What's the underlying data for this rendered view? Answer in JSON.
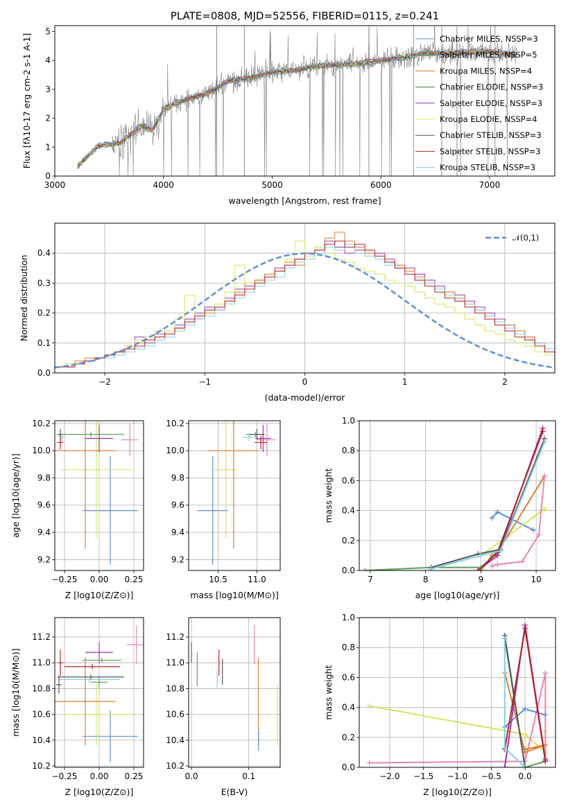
{
  "chart_data": [
    {
      "type": "line",
      "title": "PLATE=0808, MJD=52556, FIBERID=0115, z=0.241",
      "xlabel": "wavelength [Angstrom, rest frame]",
      "ylabel": "Flux [f$_{\\lambda}$10$^{-17}$ erg cm$^{-2}$ s$^{-1}$ A$^{-1}$]",
      "xlim": [
        3000,
        7600
      ],
      "ylim": [
        0,
        5.2
      ],
      "xticks": [
        "3000",
        "4000",
        "5000",
        "6000",
        "7000"
      ],
      "yticks": [
        "0",
        "1",
        "2",
        "3",
        "4",
        "5"
      ],
      "grid": false,
      "legend_position": "top-right",
      "spectrum_x": [
        3200,
        3400,
        3600,
        3800,
        3900,
        4000,
        4200,
        4400,
        4600,
        4800,
        5000,
        5200,
        5400,
        5600,
        5800,
        6000,
        6200,
        6400,
        6600,
        6800,
        7000,
        7250
      ],
      "spectrum_y": [
        0.3,
        1.05,
        1.15,
        1.75,
        1.6,
        2.3,
        2.65,
        2.85,
        3.3,
        3.4,
        3.6,
        3.65,
        3.8,
        3.85,
        3.9,
        4.0,
        4.1,
        4.25,
        4.25,
        4.3,
        4.3,
        4.2
      ],
      "series": [
        {
          "name": "Chabrier MILES, N$_{SSP}$=3",
          "color": "#5b8fd6"
        },
        {
          "name": "Salpeter MILES, N$_{SSP}$=5",
          "color": "#5aa05a"
        },
        {
          "name": "Kroupa MILES, N$_{SSP}$=4",
          "color": "#e07b28"
        },
        {
          "name": "Chabrier ELODIE, N$_{SSP}$=3",
          "color": "#3a7a3a"
        },
        {
          "name": "Salpeter ELODIE, N$_{SSP}$=3",
          "color": "#9b30b0"
        },
        {
          "name": "Kroupa ELODIE, N$_{SSP}$=4",
          "color": "#d6e25a"
        },
        {
          "name": "Chabrier STELIB, N$_{SSP}$=3",
          "color": "#555555"
        },
        {
          "name": "Salpeter STELIB, N$_{SSP}$=3",
          "color": "#b22222"
        },
        {
          "name": "Kroupa STELIB, N$_{SSP}$=3",
          "color": "#7fd0e0"
        }
      ]
    },
    {
      "type": "bar",
      "xlabel": "(data-model)/error",
      "ylabel": "Normed distribution",
      "xlim": [
        -2.5,
        2.5
      ],
      "ylim": [
        0,
        0.5
      ],
      "xticks": [
        "−2",
        "−1",
        "0",
        "1",
        "2"
      ],
      "yticks": [
        "0.0",
        "0.1",
        "0.2",
        "0.3",
        "0.4"
      ],
      "grid": true,
      "legend_position": "top-right",
      "legend": "$\\mathcal{N}(0,1)$",
      "bin_width": 0.1,
      "histograms": [
        {
          "color": "#9b30b0",
          "values": [
            0.02,
            0.02,
            0.03,
            0.04,
            0.05,
            0.06,
            0.07,
            0.08,
            0.12,
            0.1,
            0.13,
            0.14,
            0.16,
            0.18,
            0.2,
            0.22,
            0.21,
            0.25,
            0.28,
            0.29,
            0.31,
            0.33,
            0.35,
            0.36,
            0.38,
            0.39,
            0.41,
            0.44,
            0.42,
            0.4,
            0.41,
            0.39,
            0.4,
            0.38,
            0.36,
            0.35,
            0.33,
            0.31,
            0.29,
            0.27,
            0.26,
            0.24,
            0.22,
            0.2,
            0.18,
            0.16,
            0.14,
            0.12,
            0.1,
            0.08
          ]
        },
        {
          "color": "#e07b28",
          "values": [
            0.02,
            0.02,
            0.04,
            0.05,
            0.05,
            0.06,
            0.07,
            0.09,
            0.1,
            0.11,
            0.12,
            0.14,
            0.15,
            0.17,
            0.18,
            0.2,
            0.22,
            0.24,
            0.27,
            0.3,
            0.31,
            0.33,
            0.34,
            0.37,
            0.36,
            0.4,
            0.42,
            0.45,
            0.47,
            0.44,
            0.42,
            0.4,
            0.39,
            0.37,
            0.36,
            0.34,
            0.32,
            0.3,
            0.28,
            0.27,
            0.25,
            0.23,
            0.21,
            0.19,
            0.17,
            0.16,
            0.14,
            0.12,
            0.1,
            0.08
          ]
        },
        {
          "color": "#d6e25a",
          "values": [
            0.02,
            0.03,
            0.03,
            0.04,
            0.05,
            0.06,
            0.07,
            0.09,
            0.11,
            0.12,
            0.14,
            0.14,
            0.18,
            0.26,
            0.19,
            0.21,
            0.23,
            0.27,
            0.36,
            0.3,
            0.3,
            0.32,
            0.34,
            0.38,
            0.44,
            0.39,
            0.42,
            0.4,
            0.38,
            0.37,
            0.35,
            0.34,
            0.33,
            0.31,
            0.3,
            0.29,
            0.27,
            0.25,
            0.23,
            0.22,
            0.2,
            0.18,
            0.16,
            0.14,
            0.13,
            0.11,
            0.1,
            0.09,
            0.07,
            0.06
          ]
        },
        {
          "color": "#7fd0e0",
          "values": [
            0.02,
            0.02,
            0.03,
            0.04,
            0.05,
            0.05,
            0.06,
            0.07,
            0.08,
            0.09,
            0.11,
            0.12,
            0.14,
            0.16,
            0.18,
            0.19,
            0.21,
            0.23,
            0.25,
            0.27,
            0.29,
            0.31,
            0.32,
            0.35,
            0.37,
            0.38,
            0.4,
            0.42,
            0.41,
            0.43,
            0.4,
            0.39,
            0.38,
            0.36,
            0.35,
            0.33,
            0.31,
            0.3,
            0.28,
            0.26,
            0.24,
            0.23,
            0.21,
            0.19,
            0.17,
            0.15,
            0.13,
            0.11,
            0.1,
            0.08
          ]
        },
        {
          "color": "#b22222",
          "values": [
            0.02,
            0.02,
            0.03,
            0.04,
            0.05,
            0.06,
            0.07,
            0.08,
            0.09,
            0.11,
            0.12,
            0.13,
            0.15,
            0.17,
            0.19,
            0.21,
            0.22,
            0.24,
            0.26,
            0.28,
            0.3,
            0.32,
            0.34,
            0.36,
            0.38,
            0.4,
            0.41,
            0.43,
            0.44,
            0.42,
            0.43,
            0.41,
            0.39,
            0.37,
            0.35,
            0.33,
            0.31,
            0.29,
            0.27,
            0.25,
            0.24,
            0.22,
            0.2,
            0.18,
            0.16,
            0.14,
            0.12,
            0.11,
            0.09,
            0.07
          ]
        }
      ],
      "curve": {
        "name": "$\\mathcal{N}(0,1)$",
        "color": "#5b8fd6",
        "mean": 0,
        "sigma": 1
      }
    },
    {
      "type": "scatter",
      "xlabel": "Z [log$_{10}$(Z/Z$_\\odot$)]",
      "ylabel": "age  [log$_{10}$(age/yr)]",
      "xlim": [
        -0.32,
        0.32
      ],
      "ylim": [
        9.12,
        10.22
      ],
      "xticks": [
        "−0.25",
        "0.00",
        "0.25"
      ],
      "yticks": [
        "9.2",
        "9.4",
        "9.6",
        "9.8",
        "10.0",
        "10.2"
      ],
      "grid": true,
      "points": [
        {
          "color": "#5b8fd6",
          "x": 0.08,
          "xerr": 0.2,
          "y": 9.56,
          "yerr": 0.4
        },
        {
          "color": "#d6e25a",
          "x": -0.02,
          "xerr": 0.25,
          "y": 9.86,
          "yerr": 0.5
        },
        {
          "color": "#e07b28",
          "x": -0.1,
          "xerr": 0.22,
          "y": 10.0,
          "yerr": 0.72
        },
        {
          "color": "#5aa05a",
          "x": -0.06,
          "xerr": 0.24,
          "y": 10.12,
          "yerr": 0.02
        },
        {
          "color": "#9b30b0",
          "x": 0.0,
          "xerr": 0.1,
          "y": 10.09,
          "yerr": 0.1
        },
        {
          "color": "#e684b4",
          "x": 0.22,
          "xerr": 0.06,
          "y": 10.08,
          "yerr": 0.12
        },
        {
          "color": "#555555",
          "x": -0.28,
          "xerr": 0.02,
          "y": 10.12,
          "yerr": 0.04
        },
        {
          "color": "#b22222",
          "x": -0.28,
          "xerr": 0.02,
          "y": 10.06,
          "yerr": 0.05
        },
        {
          "color": "#7fd0e0",
          "x": -0.27,
          "xerr": 0.02,
          "y": 10.1,
          "yerr": 0.03
        }
      ]
    },
    {
      "type": "scatter",
      "xlabel": "mass [log$_{10}$(M/M$_\\odot$)]",
      "xlim": [
        10.12,
        11.3
      ],
      "ylim": [
        9.12,
        10.22
      ],
      "xticks": [
        "10.5",
        "11.0"
      ],
      "yticks": [
        "9.2",
        "9.4",
        "9.6",
        "9.8",
        "10.0",
        "10.2"
      ],
      "grid": true,
      "points": [
        {
          "color": "#5b8fd6",
          "x": 10.43,
          "xerr": 0.2,
          "y": 9.56,
          "yerr": 0.4
        },
        {
          "color": "#d6e25a",
          "x": 10.6,
          "xerr": 0.15,
          "y": 9.86,
          "yerr": 0.5
        },
        {
          "color": "#e07b28",
          "x": 10.7,
          "xerr": 0.33,
          "y": 10.0,
          "yerr": 0.72
        },
        {
          "color": "#5aa05a",
          "x": 10.98,
          "xerr": 0.12,
          "y": 10.12,
          "yerr": 0.02
        },
        {
          "color": "#9b30b0",
          "x": 11.08,
          "xerr": 0.1,
          "y": 10.09,
          "yerr": 0.1
        },
        {
          "color": "#e684b4",
          "x": 11.13,
          "xerr": 0.12,
          "y": 10.08,
          "yerr": 0.12
        },
        {
          "color": "#555555",
          "x": 11.0,
          "xerr": 0.1,
          "y": 10.12,
          "yerr": 0.04
        },
        {
          "color": "#b22222",
          "x": 11.05,
          "xerr": 0.08,
          "y": 10.06,
          "yerr": 0.05
        },
        {
          "color": "#7fd0e0",
          "x": 10.9,
          "xerr": 0.08,
          "y": 10.1,
          "yerr": 0.03
        }
      ]
    },
    {
      "type": "line",
      "xlabel": "age  [log$_{10}$(age/yr)]",
      "ylabel": "mass weight",
      "xlim": [
        6.8,
        10.35
      ],
      "ylim": [
        0,
        1.0
      ],
      "xticks": [
        "7",
        "8",
        "9",
        "10"
      ],
      "yticks": [
        "0.0",
        "0.2",
        "0.4",
        "0.6",
        "0.8",
        "1.0"
      ],
      "grid": true,
      "series": [
        {
          "color": "#5b8fd6",
          "x": [
            9.2,
            9.3,
            9.95
          ],
          "y": [
            0.35,
            0.39,
            0.27
          ]
        },
        {
          "color": "#d6e25a",
          "x": [
            9.0,
            9.45,
            10.15
          ],
          "y": [
            0.1,
            0.22,
            0.41
          ]
        },
        {
          "color": "#e07b28",
          "x": [
            9.0,
            9.2,
            9.3,
            10.15
          ],
          "y": [
            0.0,
            0.1,
            0.12,
            0.63
          ]
        },
        {
          "color": "#e684b4",
          "x": [
            9.2,
            9.3,
            9.75,
            10.05,
            10.15
          ],
          "y": [
            0.03,
            0.04,
            0.06,
            0.24,
            0.63
          ]
        },
        {
          "color": "#9b30b0",
          "x": [
            8.95,
            9.3,
            10.12
          ],
          "y": [
            0.0,
            0.1,
            0.95
          ]
        },
        {
          "color": "#5aa05a",
          "x": [
            6.9,
            8.1,
            9.0,
            9.35,
            10.15
          ],
          "y": [
            0.0,
            0.02,
            0.02,
            0.14,
            0.86
          ]
        },
        {
          "color": "#555555",
          "x": [
            8.1,
            8.95,
            9.35,
            10.15
          ],
          "y": [
            0.02,
            0.11,
            0.14,
            0.88
          ]
        },
        {
          "color": "#b22222",
          "x": [
            8.95,
            9.3,
            10.12
          ],
          "y": [
            0.0,
            0.12,
            0.93
          ]
        },
        {
          "color": "#7fd0e0",
          "x": [
            8.1,
            9.0,
            9.35,
            10.15
          ],
          "y": [
            0.01,
            0.1,
            0.13,
            0.86
          ]
        }
      ]
    },
    {
      "type": "scatter",
      "xlabel": "Z [log$_{10}$(Z/Z$_\\odot$)]",
      "ylabel": "mass [log$_{10}$(M/M$_\\odot$)]",
      "xlim": [
        -0.32,
        0.32
      ],
      "ylim": [
        10.19,
        11.35
      ],
      "xticks": [
        "−0.25",
        "0.00",
        "0.25"
      ],
      "yticks": [
        "10.2",
        "10.4",
        "10.6",
        "10.8",
        "11.0",
        "11.2"
      ],
      "grid": true,
      "points": [
        {
          "color": "#5b8fd6",
          "x": 0.08,
          "xerr": 0.2,
          "y": 10.43,
          "yerr": 0.2
        },
        {
          "color": "#d6e25a",
          "x": -0.02,
          "xerr": 0.25,
          "y": 10.6,
          "yerr": 0.24
        },
        {
          "color": "#e07b28",
          "x": -0.1,
          "xerr": 0.22,
          "y": 10.7,
          "yerr": 0.34
        },
        {
          "color": "#5aa05a",
          "x": 0.0,
          "xerr": 0.06,
          "y": 10.85,
          "yerr": 0.04
        },
        {
          "color": "#9b30b0",
          "x": 0.0,
          "xerr": 0.1,
          "y": 11.08,
          "yerr": 0.08
        },
        {
          "color": "#e684b4",
          "x": 0.27,
          "xerr": 0.07,
          "y": 11.14,
          "yerr": 0.15
        },
        {
          "color": "#555555",
          "x": -0.06,
          "xerr": 0.24,
          "y": 10.89,
          "yerr": 0.02
        },
        {
          "color": "#b22222",
          "x": -0.28,
          "xerr": 0.02,
          "y": 11.0,
          "yerr": 0.1
        },
        {
          "color": "#7fd0e0",
          "x": -0.07,
          "xerr": 0.22,
          "y": 10.87,
          "yerr": 0.03
        },
        {
          "color": "#5aa05a",
          "x": 0.02,
          "xerr": 0.14,
          "y": 11.02,
          "yerr": 0.02
        },
        {
          "color": "#555555",
          "x": -0.29,
          "xerr": 0.02,
          "y": 10.83,
          "yerr": 0.07
        },
        {
          "color": "#b22222",
          "x": -0.05,
          "xerr": 0.2,
          "y": 10.97,
          "yerr": 0.02
        }
      ]
    },
    {
      "type": "scatter",
      "xlabel": "E(B-V)",
      "xlim": [
        -0.005,
        0.155
      ],
      "ylim": [
        10.19,
        11.35
      ],
      "xticks": [
        "0.0",
        "0.1"
      ],
      "yticks": [
        "10.2",
        "10.4",
        "10.6",
        "10.8",
        "11.0",
        "11.2"
      ],
      "grid": true,
      "points": [
        {
          "color": "#9b30b0",
          "x": 0.0,
          "y": 11.08,
          "yerr": 0.08
        },
        {
          "color": "#5aa05a",
          "x": 0.01,
          "y": 10.95,
          "yerr": 0.13
        },
        {
          "color": "#7fd0e0",
          "x": 0.045,
          "y": 10.87,
          "yerr": 0.07
        },
        {
          "color": "#b22222",
          "x": 0.048,
          "y": 11.0,
          "yerr": 0.1
        },
        {
          "color": "#555555",
          "x": 0.054,
          "y": 10.93,
          "yerr": 0.1
        },
        {
          "color": "#e684b4",
          "x": 0.11,
          "y": 11.14,
          "yerr": 0.15
        },
        {
          "color": "#e07b28",
          "x": 0.117,
          "y": 10.7,
          "yerr": 0.34
        },
        {
          "color": "#5b8fd6",
          "x": 0.117,
          "y": 10.4,
          "yerr": 0.08
        },
        {
          "color": "#d6e25a",
          "x": 0.15,
          "y": 10.6,
          "yerr": 0.24
        }
      ]
    },
    {
      "type": "line",
      "xlabel": "Z [log$_{10}$(Z/Z$_\\odot$)]",
      "ylabel": "mass weight",
      "xlim": [
        -2.45,
        0.45
      ],
      "ylim": [
        0,
        1.0
      ],
      "xticks": [
        "−2.0",
        "−1.5",
        "−1.0",
        "−0.5",
        "0.0"
      ],
      "yticks": [
        "0.0",
        "0.2",
        "0.4",
        "0.6",
        "0.8",
        "1.0"
      ],
      "grid": true,
      "series": [
        {
          "color": "#d6e25a",
          "x": [
            -2.3,
            0.0,
            0.3,
            0.3
          ],
          "y": [
            0.41,
            0.22,
            0.1,
            0.24
          ]
        },
        {
          "color": "#e684b4",
          "x": [
            -2.3,
            0.0,
            0.3,
            0.3
          ],
          "y": [
            0.03,
            0.04,
            0.63,
            0.06
          ]
        },
        {
          "color": "#5b8fd6",
          "x": [
            -0.3,
            0.0,
            0.3
          ],
          "y": [
            0.27,
            0.39,
            0.35
          ]
        },
        {
          "color": "#e07b28",
          "x": [
            -0.3,
            0.0,
            0.3,
            0.0
          ],
          "y": [
            0.63,
            0.1,
            0.15,
            0.12
          ]
        },
        {
          "color": "#9b30b0",
          "x": [
            -0.3,
            0.0,
            0.3
          ],
          "y": [
            0.0,
            0.95,
            0.05
          ]
        },
        {
          "color": "#5aa05a",
          "x": [
            -0.3,
            0.0,
            0.3
          ],
          "y": [
            0.86,
            0.0,
            0.04
          ]
        },
        {
          "color": "#555555",
          "x": [
            -0.3,
            0.0
          ],
          "y": [
            0.88,
            0.0
          ]
        },
        {
          "color": "#b22222",
          "x": [
            -0.3,
            0.0,
            0.3
          ],
          "y": [
            0.12,
            0.93,
            0.04
          ]
        },
        {
          "color": "#7fd0e0",
          "x": [
            -0.3,
            -0.3,
            0.0
          ],
          "y": [
            0.86,
            0.13,
            0.0
          ]
        }
      ]
    }
  ]
}
